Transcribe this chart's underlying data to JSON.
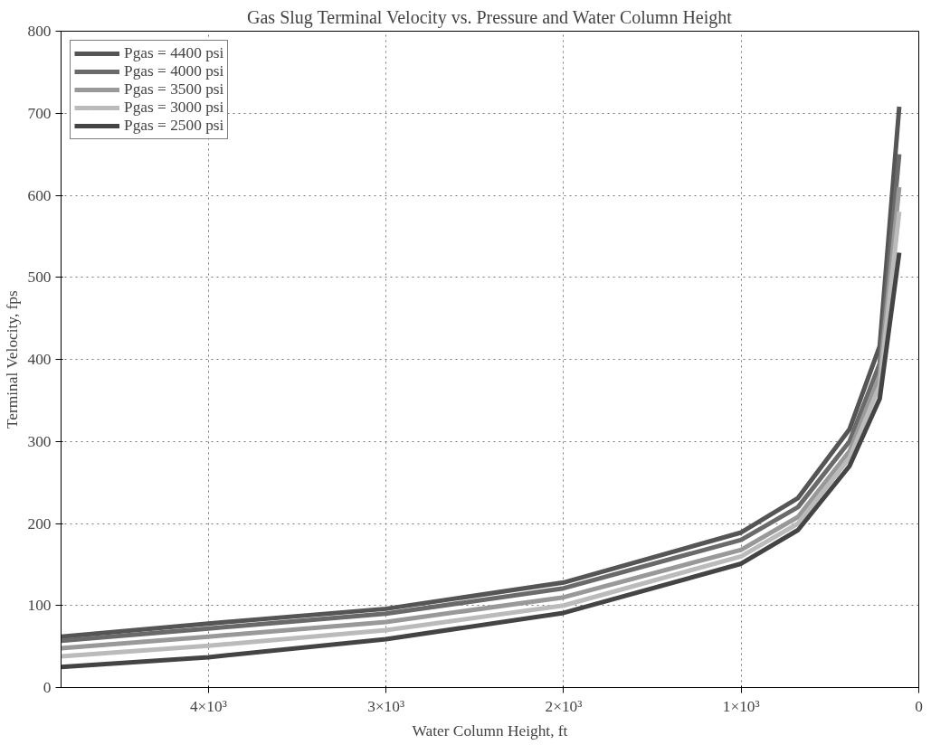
{
  "chart_data": {
    "type": "line",
    "title": "Gas Slug Terminal Velocity vs. Pressure and Water Column Height",
    "xlabel": "Water Column Height, ft",
    "ylabel": "Terminal Velocity, fps",
    "x": [
      4830,
      4000,
      3000,
      2000,
      1000,
      680,
      390,
      220,
      110
    ],
    "series": [
      {
        "name": "Pgas = 4400 psi",
        "color": "#555555",
        "values": [
          62,
          78,
          96,
          128,
          189,
          231,
          315,
          416,
          708
        ]
      },
      {
        "name": "Pgas = 4000 psi",
        "color": "#6a6a6a",
        "values": [
          57,
          72,
          90,
          121,
          180,
          220,
          300,
          395,
          650
        ]
      },
      {
        "name": "Pgas = 3500 psi",
        "color": "#999999",
        "values": [
          48,
          62,
          80,
          110,
          168,
          208,
          288,
          380,
          610
        ]
      },
      {
        "name": "Pgas = 3000 psi",
        "color": "#bbbbbb",
        "values": [
          38,
          51,
          70,
          100,
          160,
          200,
          280,
          368,
          580
        ]
      },
      {
        "name": "Pgas = 2500 psi",
        "color": "#444444",
        "values": [
          25,
          37,
          59,
          91,
          151,
          192,
          270,
          352,
          530
        ]
      }
    ],
    "xlim": [
      4830,
      0
    ],
    "ylim": [
      0,
      800
    ],
    "xticks": [
      {
        "value": 4000,
        "label": "4×10³"
      },
      {
        "value": 3000,
        "label": "3×10³"
      },
      {
        "value": 2000,
        "label": "2×10³"
      },
      {
        "value": 1000,
        "label": "1×10³"
      },
      0
    ],
    "yticks": [
      0,
      100,
      200,
      300,
      400,
      500,
      600,
      700,
      800
    ],
    "grid": true,
    "legend": "top left",
    "line_style": "solid"
  }
}
